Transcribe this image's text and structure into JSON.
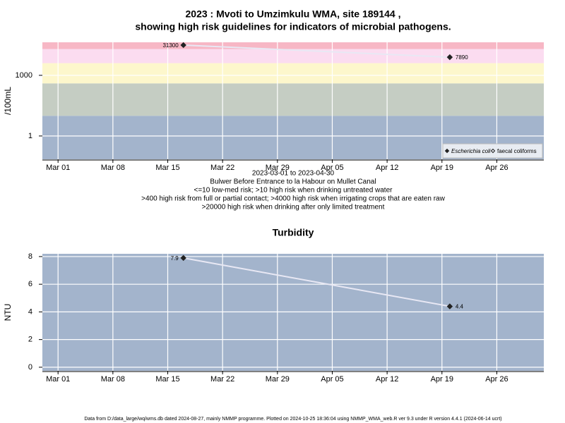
{
  "chart_data": [
    {
      "type": "line",
      "title": "2023 : Mvoti to Umzimkulu WMA, site 189144 ,",
      "subtitle": "showing high risk guidelines for indicators of microbial pathogens.",
      "y_label": "/100mL",
      "x_label": "2023-03-01 to 2023-04-30",
      "notes": [
        "Bulwer Before Entrance to la Habour on Mullet Canal",
        "<=10 low-med risk; >10 high risk when drinking untreated water",
        ">400 high risk from full or partial contact; >4000 high risk when irrigating crops that are eaten raw",
        ">20000 high risk when drinking after only limited treatment"
      ],
      "log_scale": true,
      "grid": true,
      "legend": "bottom right",
      "x": [
        "2023-03-17",
        "2023-04-20"
      ],
      "xlim": [
        "2023-02-27",
        "2023-05-02"
      ],
      "xticks": [
        {
          "value": "2023-03-01",
          "label": "Mar 01"
        },
        {
          "value": "2023-03-08",
          "label": "Mar 08"
        },
        {
          "value": "2023-03-15",
          "label": "Mar 15"
        },
        {
          "value": "2023-03-22",
          "label": "Mar 22"
        },
        {
          "value": "2023-03-29",
          "label": "Mar 29"
        },
        {
          "value": "2023-04-05",
          "label": "Apr 05"
        },
        {
          "value": "2023-04-12",
          "label": "Apr 12"
        },
        {
          "value": "2023-04-19",
          "label": "Apr 19"
        },
        {
          "value": "2023-04-26",
          "label": "Apr 26"
        }
      ],
      "ylim": [
        0.07,
        43000
      ],
      "yticks": [
        1,
        1000
      ],
      "thresholds": [
        10,
        400,
        4000,
        20000
      ],
      "band_colors": [
        "#a3b4cc",
        "#c5cdc3",
        "#fdf7cc",
        "#fbdcf0",
        "#f7b7c5"
      ],
      "line_color": "#e8e8f4",
      "series": [
        {
          "name": "Escherichia coli",
          "color": "#222222",
          "marker": "filled",
          "values": [
            31300,
            7890
          ]
        },
        {
          "name": "faecal coliforms",
          "color": "#222222",
          "marker": "open",
          "values": [
            null,
            null
          ]
        }
      ]
    },
    {
      "type": "line",
      "title": "Turbidity",
      "y_label": "NTU",
      "grid": true,
      "x": [
        "2023-03-17",
        "2023-04-20"
      ],
      "xlim": [
        "2023-02-27",
        "2023-05-02"
      ],
      "xticks": [
        {
          "value": "2023-03-01",
          "label": "Mar 01"
        },
        {
          "value": "2023-03-08",
          "label": "Mar 08"
        },
        {
          "value": "2023-03-15",
          "label": "Mar 15"
        },
        {
          "value": "2023-03-22",
          "label": "Mar 22"
        },
        {
          "value": "2023-03-29",
          "label": "Mar 29"
        },
        {
          "value": "2023-04-05",
          "label": "Apr 05"
        },
        {
          "value": "2023-04-12",
          "label": "Apr 12"
        },
        {
          "value": "2023-04-19",
          "label": "Apr 19"
        },
        {
          "value": "2023-04-26",
          "label": "Apr 26"
        }
      ],
      "ylim": [
        -0.26,
        8.2
      ],
      "yticks": [
        0,
        2,
        4,
        6,
        8
      ],
      "background": "#a3b4cc",
      "line_color": "#e8e8f4",
      "series": [
        {
          "name": "Turbidity",
          "color": "#222222",
          "marker": "filled",
          "values": [
            7.9,
            4.4
          ]
        }
      ]
    }
  ],
  "footer": "Data from D:/data_large/wq/wms.db dated 2024-08-27, mainly NMMP programme. Plotted on 2024-10-25 18:36:04 using NMMP_WMA_web.R ver 9.3 under R version 4.4.1 (2024-06-14 ucrt)"
}
